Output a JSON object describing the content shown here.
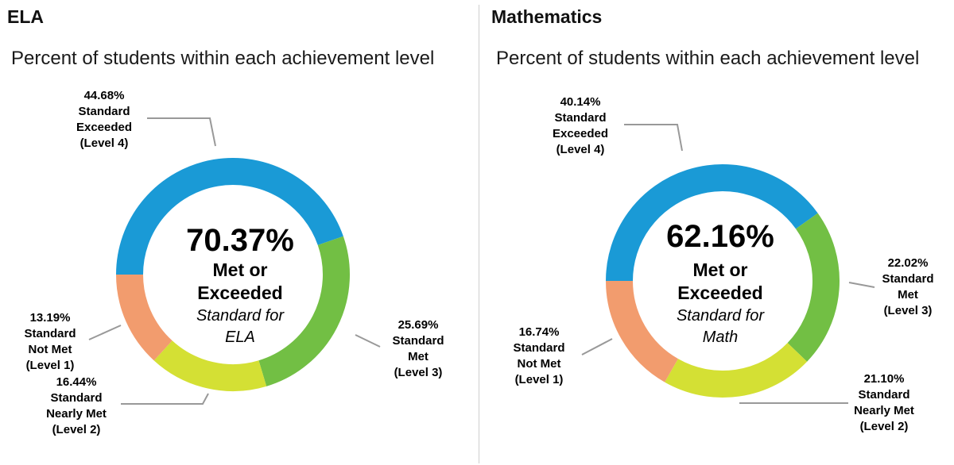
{
  "colors": {
    "level4": "#1a9ad6",
    "level3": "#72bf44",
    "level2": "#d4e034",
    "level1": "#f29c6e",
    "leader": "#999999"
  },
  "chart_data": [
    {
      "type": "pie",
      "subject": "ELA",
      "title": "Percent of students within each achievement level",
      "center": {
        "value": "70.37%",
        "line1": "Met or",
        "line2": "Exceeded",
        "line3": "Standard for",
        "line4": "ELA"
      },
      "categories": [
        "Standard Exceeded (Level 4)",
        "Standard Met (Level 3)",
        "Standard Nearly Met (Level 2)",
        "Standard Not Met (Level 1)"
      ],
      "values": [
        44.68,
        25.69,
        16.44,
        13.19
      ],
      "labels": [
        {
          "pct": "44.68%",
          "l1": "Standard",
          "l2": "Exceeded",
          "l3": "(Level 4)"
        },
        {
          "pct": "25.69%",
          "l1": "Standard",
          "l2": "Met",
          "l3": "(Level 3)"
        },
        {
          "pct": "16.44%",
          "l1": "Standard",
          "l2": "Nearly Met",
          "l3": "(Level 2)"
        },
        {
          "pct": "13.19%",
          "l1": "Standard",
          "l2": "Not Met",
          "l3": "(Level 1)"
        }
      ]
    },
    {
      "type": "pie",
      "subject": "Mathematics",
      "title": "Percent of students within each achievement level",
      "center": {
        "value": "62.16%",
        "line1": "Met or",
        "line2": "Exceeded",
        "line3": "Standard for",
        "line4": "Math"
      },
      "categories": [
        "Standard Exceeded (Level 4)",
        "Standard Met (Level 3)",
        "Standard Nearly Met (Level 2)",
        "Standard Not Met (Level 1)"
      ],
      "values": [
        40.14,
        22.02,
        21.1,
        16.74
      ],
      "labels": [
        {
          "pct": "40.14%",
          "l1": "Standard",
          "l2": "Exceeded",
          "l3": "(Level 4)"
        },
        {
          "pct": "22.02%",
          "l1": "Standard",
          "l2": "Met",
          "l3": "(Level 3)"
        },
        {
          "pct": "21.10%",
          "l1": "Standard",
          "l2": "Nearly Met",
          "l3": "(Level 2)"
        },
        {
          "pct": "16.74%",
          "l1": "Standard",
          "l2": "Not Met",
          "l3": "(Level 1)"
        }
      ]
    }
  ]
}
